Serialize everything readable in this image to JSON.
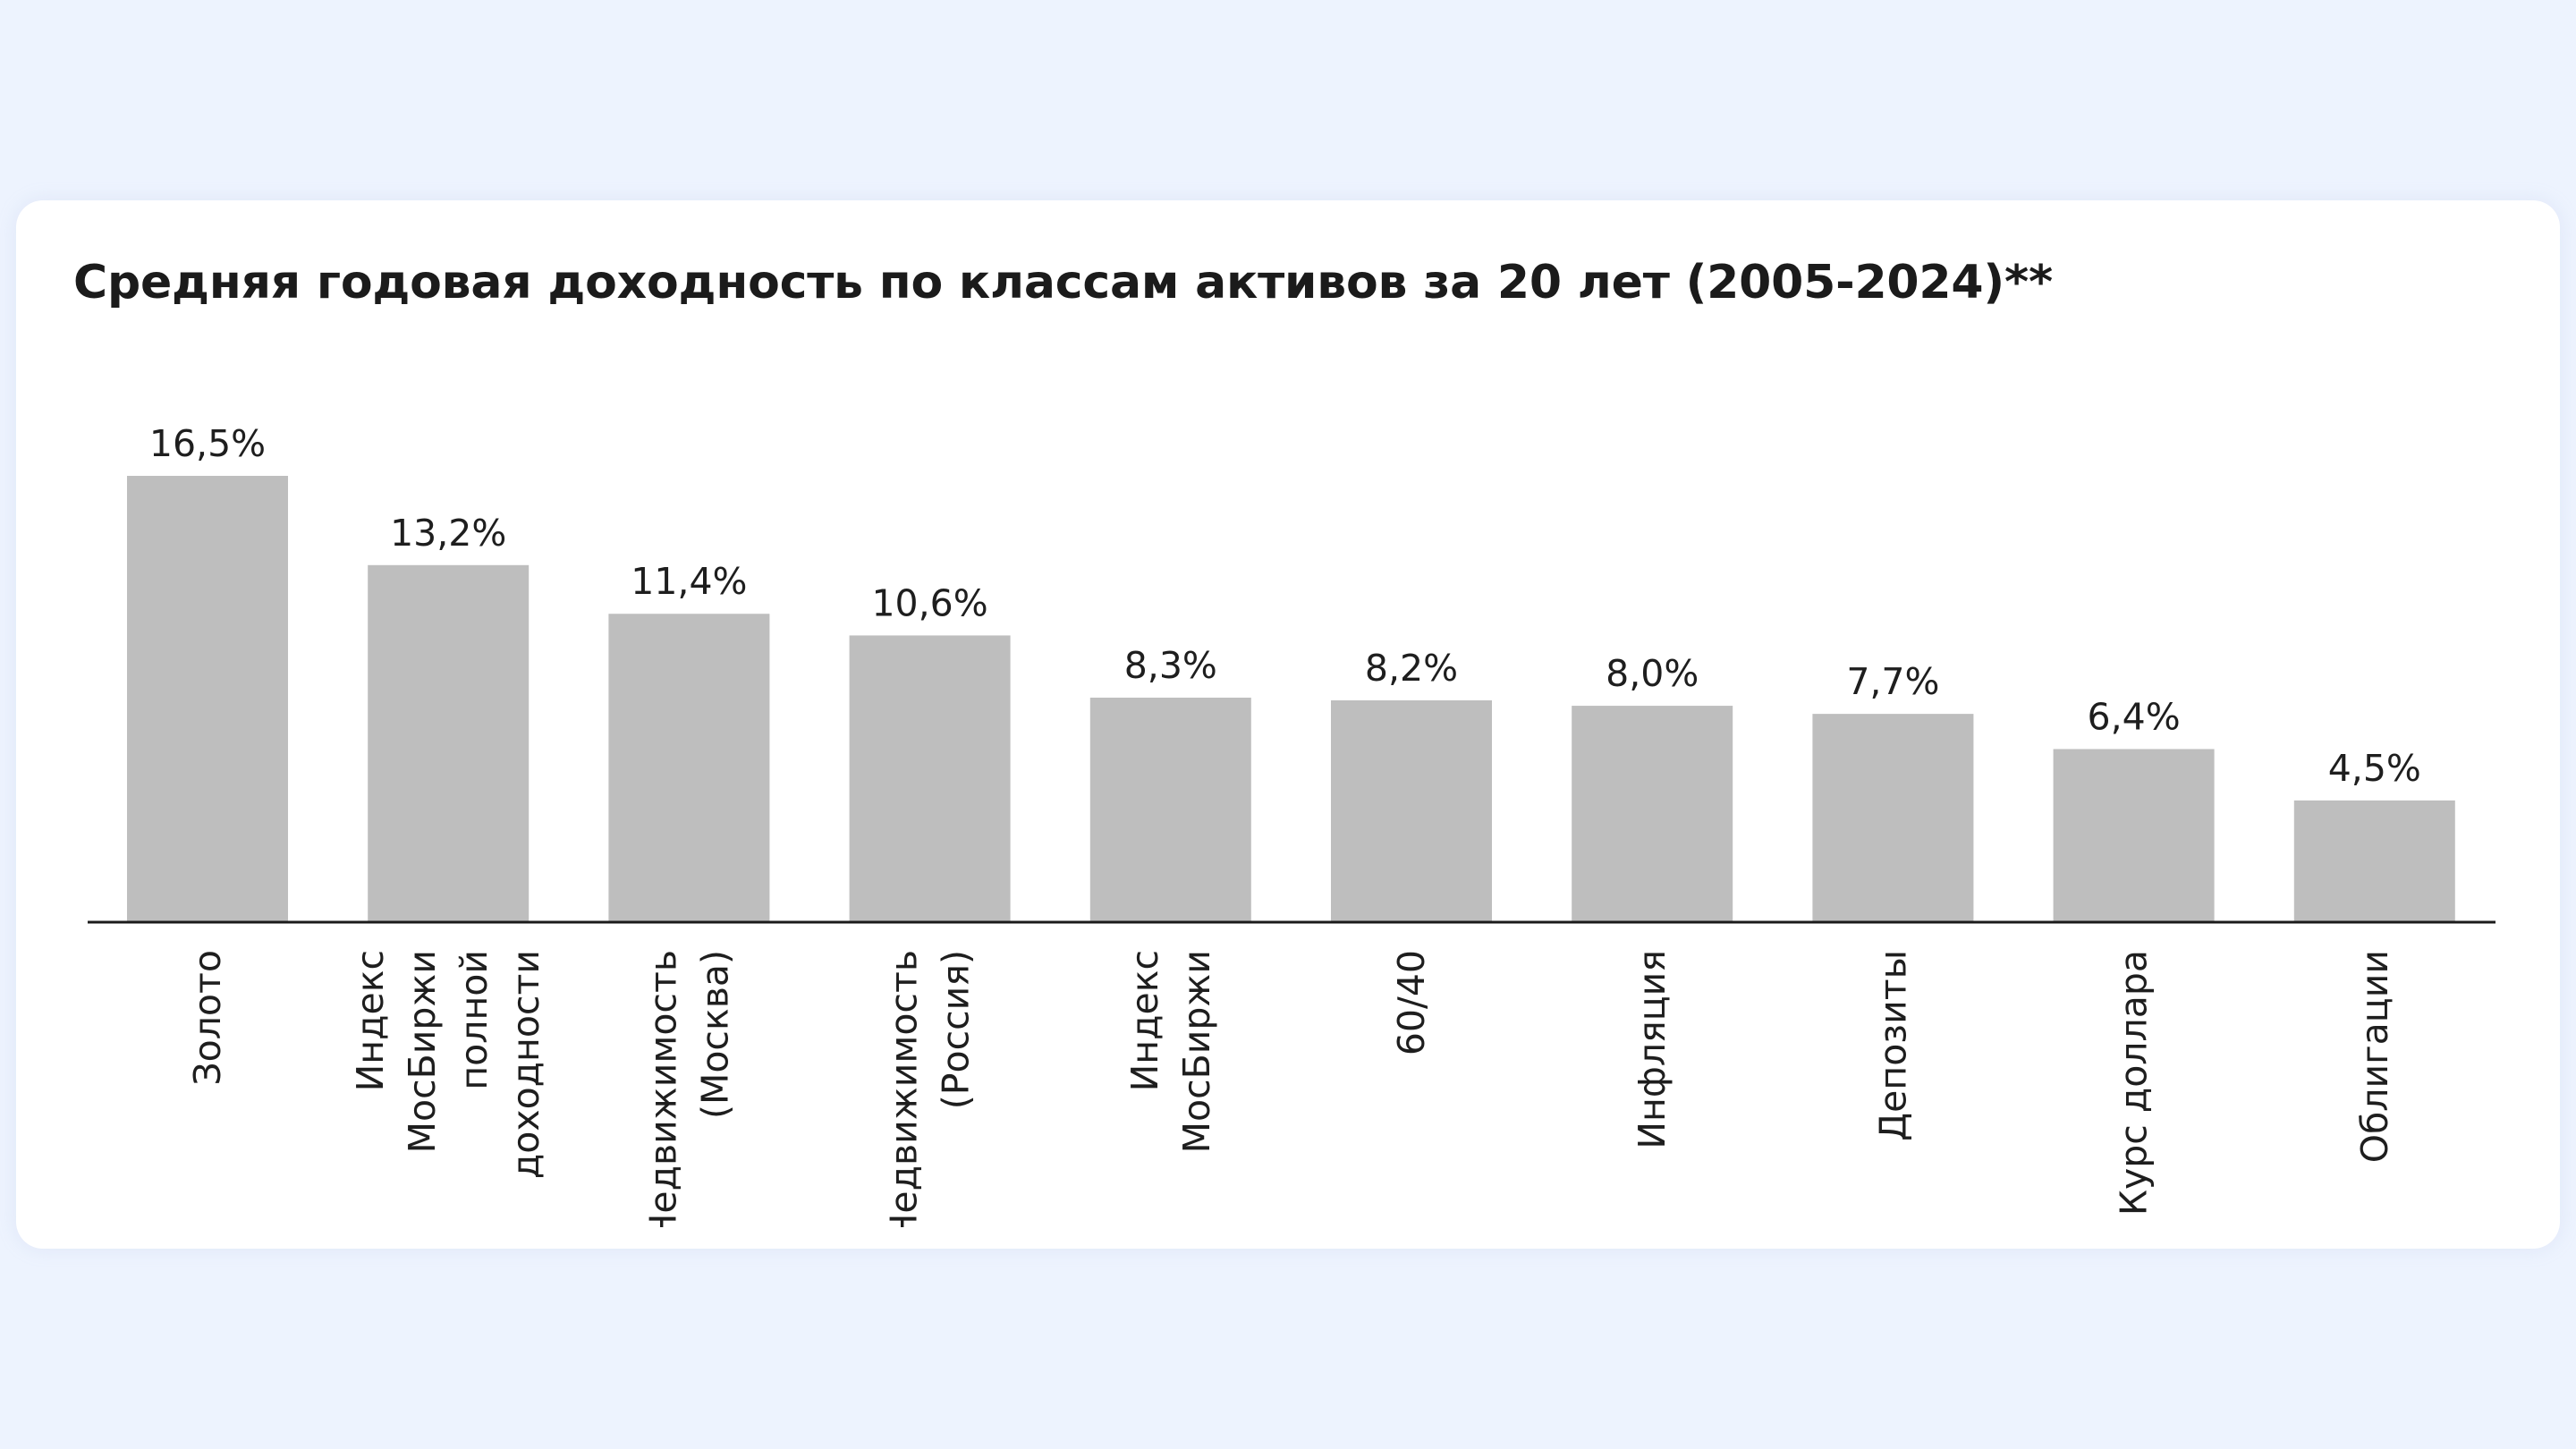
{
  "chart_data": {
    "type": "bar",
    "title": "Средняя годовая доходность по классам активов за 20 лет (2005-2024)**",
    "xlabel": "",
    "ylabel": "",
    "ylim": [
      0,
      16.5
    ],
    "grid": false,
    "categories": [
      [
        "Золото"
      ],
      [
        "Индекс",
        "МосБиржи",
        "полной",
        "доходности"
      ],
      [
        "Недвижимость",
        "(Москва)"
      ],
      [
        "Недвижимость",
        "(Россия)"
      ],
      [
        "Индекс",
        "МосБиржи"
      ],
      [
        "60/40"
      ],
      [
        "Инфляция"
      ],
      [
        "Депозиты"
      ],
      [
        "Курс доллара"
      ],
      [
        "Облигации"
      ]
    ],
    "values": [
      16.5,
      13.2,
      11.4,
      10.6,
      8.3,
      8.2,
      8.0,
      7.7,
      6.4,
      4.5
    ],
    "value_labels": [
      "16,5%",
      "13,2%",
      "11,4%",
      "10,6%",
      "8,3%",
      "8,2%",
      "8,0%",
      "7,7%",
      "6,4%",
      "4,5%"
    ],
    "bar_color": "#bebebe"
  }
}
